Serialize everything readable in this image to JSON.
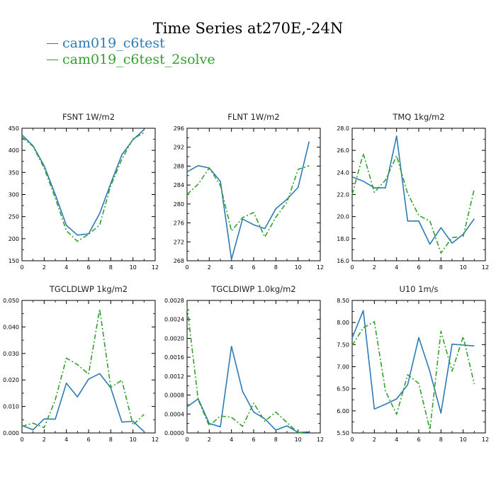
{
  "title": "Time Series at270E,-24N",
  "legend": [
    {
      "name": "cam019_c6test",
      "color": "#2c7bb6"
    },
    {
      "name": "cam019_c6test_2solve",
      "color": "#33a02c"
    }
  ],
  "chart_data": [
    {
      "type": "line",
      "title": "FSNT   1W/m2",
      "x": [
        0,
        1,
        2,
        3,
        4,
        5,
        6,
        7,
        8,
        9,
        10,
        11
      ],
      "xlim": [
        0,
        12
      ],
      "xticks": [
        "0",
        "2",
        "4",
        "6",
        "8",
        "10",
        "12"
      ],
      "ylim": [
        150,
        450
      ],
      "yticks": [
        "150",
        "200",
        "250",
        "300",
        "350",
        "400",
        "450"
      ],
      "series": [
        {
          "name": "cam019_c6test",
          "values": [
            435,
            410,
            365,
            300,
            230,
            208,
            211,
            257,
            325,
            390,
            424,
            447
          ]
        },
        {
          "name": "cam019_c6test_2solve",
          "values": [
            430,
            409,
            360,
            292,
            218,
            194,
            210,
            231,
            320,
            380,
            426,
            440
          ]
        }
      ]
    },
    {
      "type": "line",
      "title": "FLNT   1W/m2",
      "x": [
        0,
        1,
        2,
        3,
        4,
        5,
        6,
        7,
        8,
        9,
        10,
        11
      ],
      "xlim": [
        0,
        12
      ],
      "xticks": [
        "0",
        "2",
        "4",
        "6",
        "8",
        "10",
        "12"
      ],
      "ylim": [
        268,
        296
      ],
      "yticks": [
        "268",
        "272",
        "276",
        "280",
        "284",
        "288",
        "292",
        "296"
      ],
      "series": [
        {
          "name": "cam019_c6test",
          "values": [
            286.8,
            288.1,
            287.6,
            284.8,
            268.3,
            276.8,
            275.6,
            274.8,
            279.0,
            281.0,
            283.5,
            293.2
          ]
        },
        {
          "name": "cam019_c6test_2solve",
          "values": [
            282.0,
            284.2,
            287.6,
            283.9,
            274.3,
            277.1,
            278.2,
            273.0,
            277.2,
            280.4,
            287.3,
            288.1
          ]
        }
      ]
    },
    {
      "type": "line",
      "title": "TMQ   1kg/m2",
      "x": [
        0,
        1,
        2,
        3,
        4,
        5,
        6,
        7,
        8,
        9,
        10,
        11
      ],
      "xlim": [
        0,
        12
      ],
      "xticks": [
        "0",
        "2",
        "4",
        "6",
        "8",
        "10",
        "12"
      ],
      "ylim": [
        16,
        28
      ],
      "yticks": [
        "16.0",
        "18.0",
        "20.0",
        "22.0",
        "24.0",
        "26.0",
        "28.0"
      ],
      "series": [
        {
          "name": "cam019_c6test",
          "values": [
            23.6,
            23.2,
            22.6,
            22.6,
            27.3,
            19.6,
            19.6,
            17.5,
            19.0,
            17.6,
            18.4,
            19.8
          ]
        },
        {
          "name": "cam019_c6test_2solve",
          "values": [
            22.0,
            25.7,
            22.2,
            23.3,
            25.5,
            22.1,
            20.1,
            19.6,
            16.7,
            18.1,
            18.2,
            22.5
          ]
        }
      ]
    },
    {
      "type": "line",
      "title": "TGCLDLWP   1kg/m2",
      "x": [
        0,
        1,
        2,
        3,
        4,
        5,
        6,
        7,
        8,
        9,
        10,
        11
      ],
      "xlim": [
        0,
        12
      ],
      "xticks": [
        "0",
        "2",
        "4",
        "6",
        "8",
        "10",
        "12"
      ],
      "ylim": [
        0,
        0.05
      ],
      "yticks": [
        "0.000",
        "0.010",
        "0.020",
        "0.030",
        "0.040",
        "0.050"
      ],
      "series": [
        {
          "name": "cam019_c6test",
          "values": [
            0.0028,
            0.0012,
            0.0053,
            0.0052,
            0.0188,
            0.0136,
            0.0203,
            0.0224,
            0.017,
            0.0041,
            0.0044,
            0.0005
          ]
        },
        {
          "name": "cam019_c6test_2solve",
          "values": [
            0.0025,
            0.0037,
            0.002,
            0.0125,
            0.0282,
            0.0258,
            0.0222,
            0.0467,
            0.0172,
            0.0199,
            0.003,
            0.007
          ]
        }
      ]
    },
    {
      "type": "line",
      "title": "TGCLDIWP   1.0kg/m2",
      "x": [
        0,
        1,
        2,
        3,
        4,
        5,
        6,
        7,
        8,
        9,
        10,
        11
      ],
      "xlim": [
        0,
        12
      ],
      "xticks": [
        "0",
        "2",
        "4",
        "6",
        "8",
        "10",
        "12"
      ],
      "ylim": [
        0,
        0.0028
      ],
      "yticks": [
        "0.0000",
        "0.0004",
        "0.0008",
        "0.0012",
        "0.0016",
        "0.0020",
        "0.0024",
        "0.0028"
      ],
      "series": [
        {
          "name": "cam019_c6test",
          "values": [
            0.00055,
            0.00072,
            0.0002,
            0.00013,
            0.00183,
            0.00088,
            0.00044,
            0.0003,
            6e-05,
            0.00015,
            1e-05,
            2e-05
          ]
        },
        {
          "name": "cam019_c6test_2solve",
          "values": [
            0.00268,
            0.0007,
            0.00015,
            0.00036,
            0.00033,
            0.00014,
            0.00063,
            0.00025,
            0.00044,
            0.00022,
            0.0,
            3e-05
          ]
        }
      ]
    },
    {
      "type": "line",
      "title": "U10   1m/s",
      "x": [
        0,
        1,
        2,
        3,
        4,
        5,
        6,
        7,
        8,
        9,
        10,
        11
      ],
      "xlim": [
        0,
        12
      ],
      "xticks": [
        "0",
        "2",
        "4",
        "6",
        "8",
        "10",
        "12"
      ],
      "ylim": [
        5.5,
        8.5
      ],
      "yticks": [
        "5.50",
        "6.00",
        "6.50",
        "7.00",
        "7.50",
        "8.00",
        "8.50"
      ],
      "series": [
        {
          "name": "cam019_c6test",
          "values": [
            7.65,
            8.27,
            6.04,
            6.15,
            6.27,
            6.59,
            7.66,
            6.89,
            5.95,
            7.51,
            7.49,
            7.47
          ]
        },
        {
          "name": "cam019_c6test_2solve",
          "values": [
            7.48,
            7.88,
            8.02,
            6.45,
            5.92,
            6.82,
            6.62,
            5.57,
            7.8,
            6.9,
            7.68,
            6.61
          ]
        }
      ]
    }
  ]
}
